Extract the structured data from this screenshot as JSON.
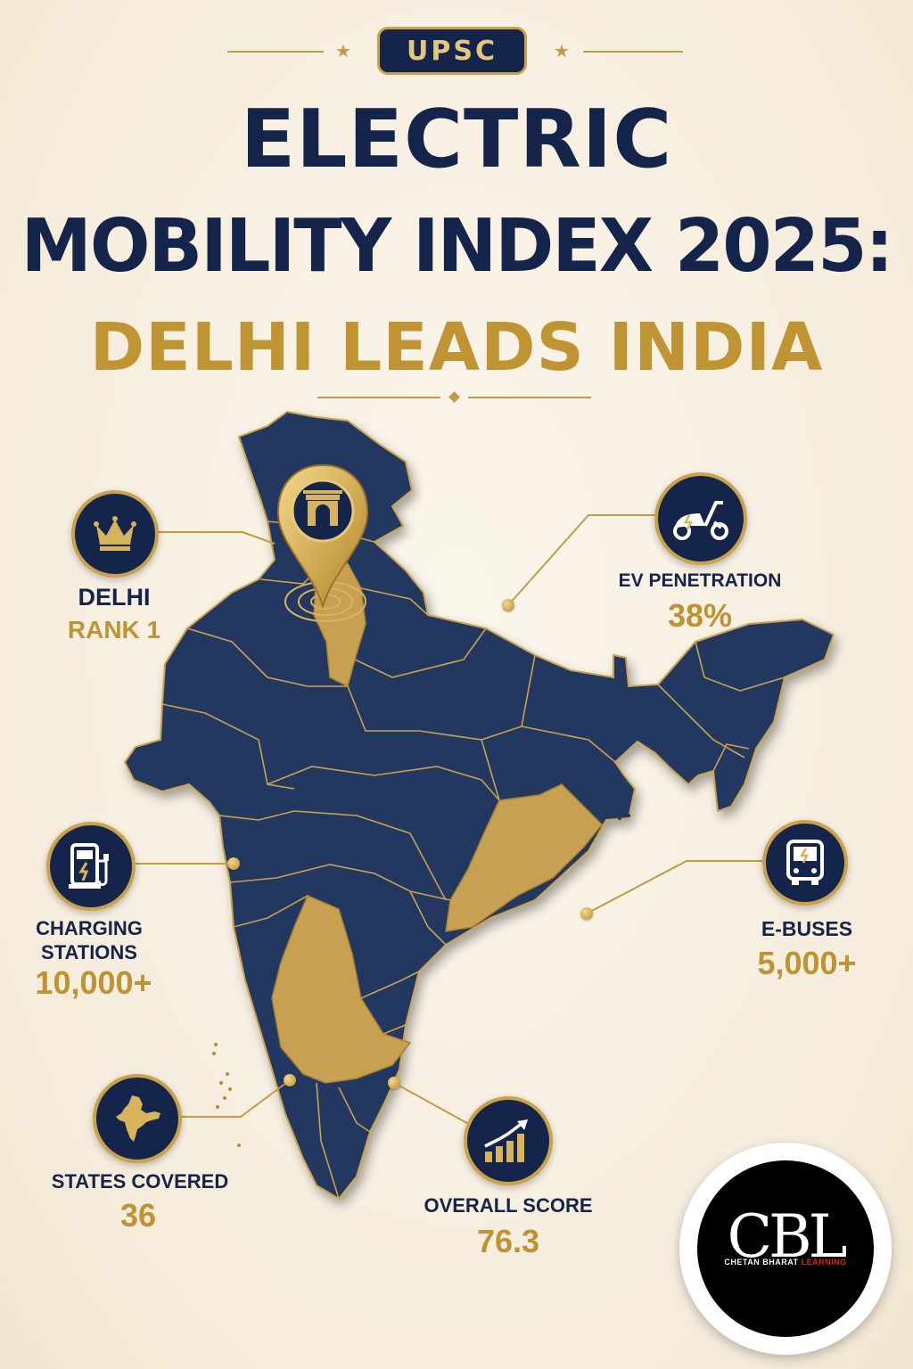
{
  "badge": "UPSC",
  "title": {
    "line1": "ELECTRIC",
    "line2": "MOBILITY INDEX 2025:",
    "line3": "DELHI LEADS INDIA"
  },
  "stats": {
    "delhi": {
      "label": "DELHI",
      "value": "RANK 1",
      "icon": "crown-icon"
    },
    "ev_penetration": {
      "label": "EV PENETRATION",
      "value": "38%",
      "icon": "scooter-icon"
    },
    "charging": {
      "label_line1": "CHARGING",
      "label_line2": "STATIONS",
      "value": "10,000+",
      "icon": "charging-station-icon"
    },
    "ebuses": {
      "label": "E-BUSES",
      "value": "5,000+",
      "icon": "bus-icon"
    },
    "states": {
      "label": "STATES COVERED",
      "value": "36",
      "icon": "india-map-icon"
    },
    "score": {
      "label": "OVERALL SCORE",
      "value": "76.3",
      "icon": "rising-chart-icon"
    }
  },
  "map": {
    "highlighted_regions": [
      "Haryana-Delhi",
      "Odisha",
      "Karnataka"
    ],
    "pin_icon": "india-gate-icon"
  },
  "logo": {
    "letters": "CBL",
    "name_white": "CHETAN BHARAT",
    "name_red": "LEARNING"
  },
  "colors": {
    "navy": "#14244a",
    "gold": "#c29b45",
    "background": "#f8f0e2",
    "map_fill": "#223761"
  }
}
